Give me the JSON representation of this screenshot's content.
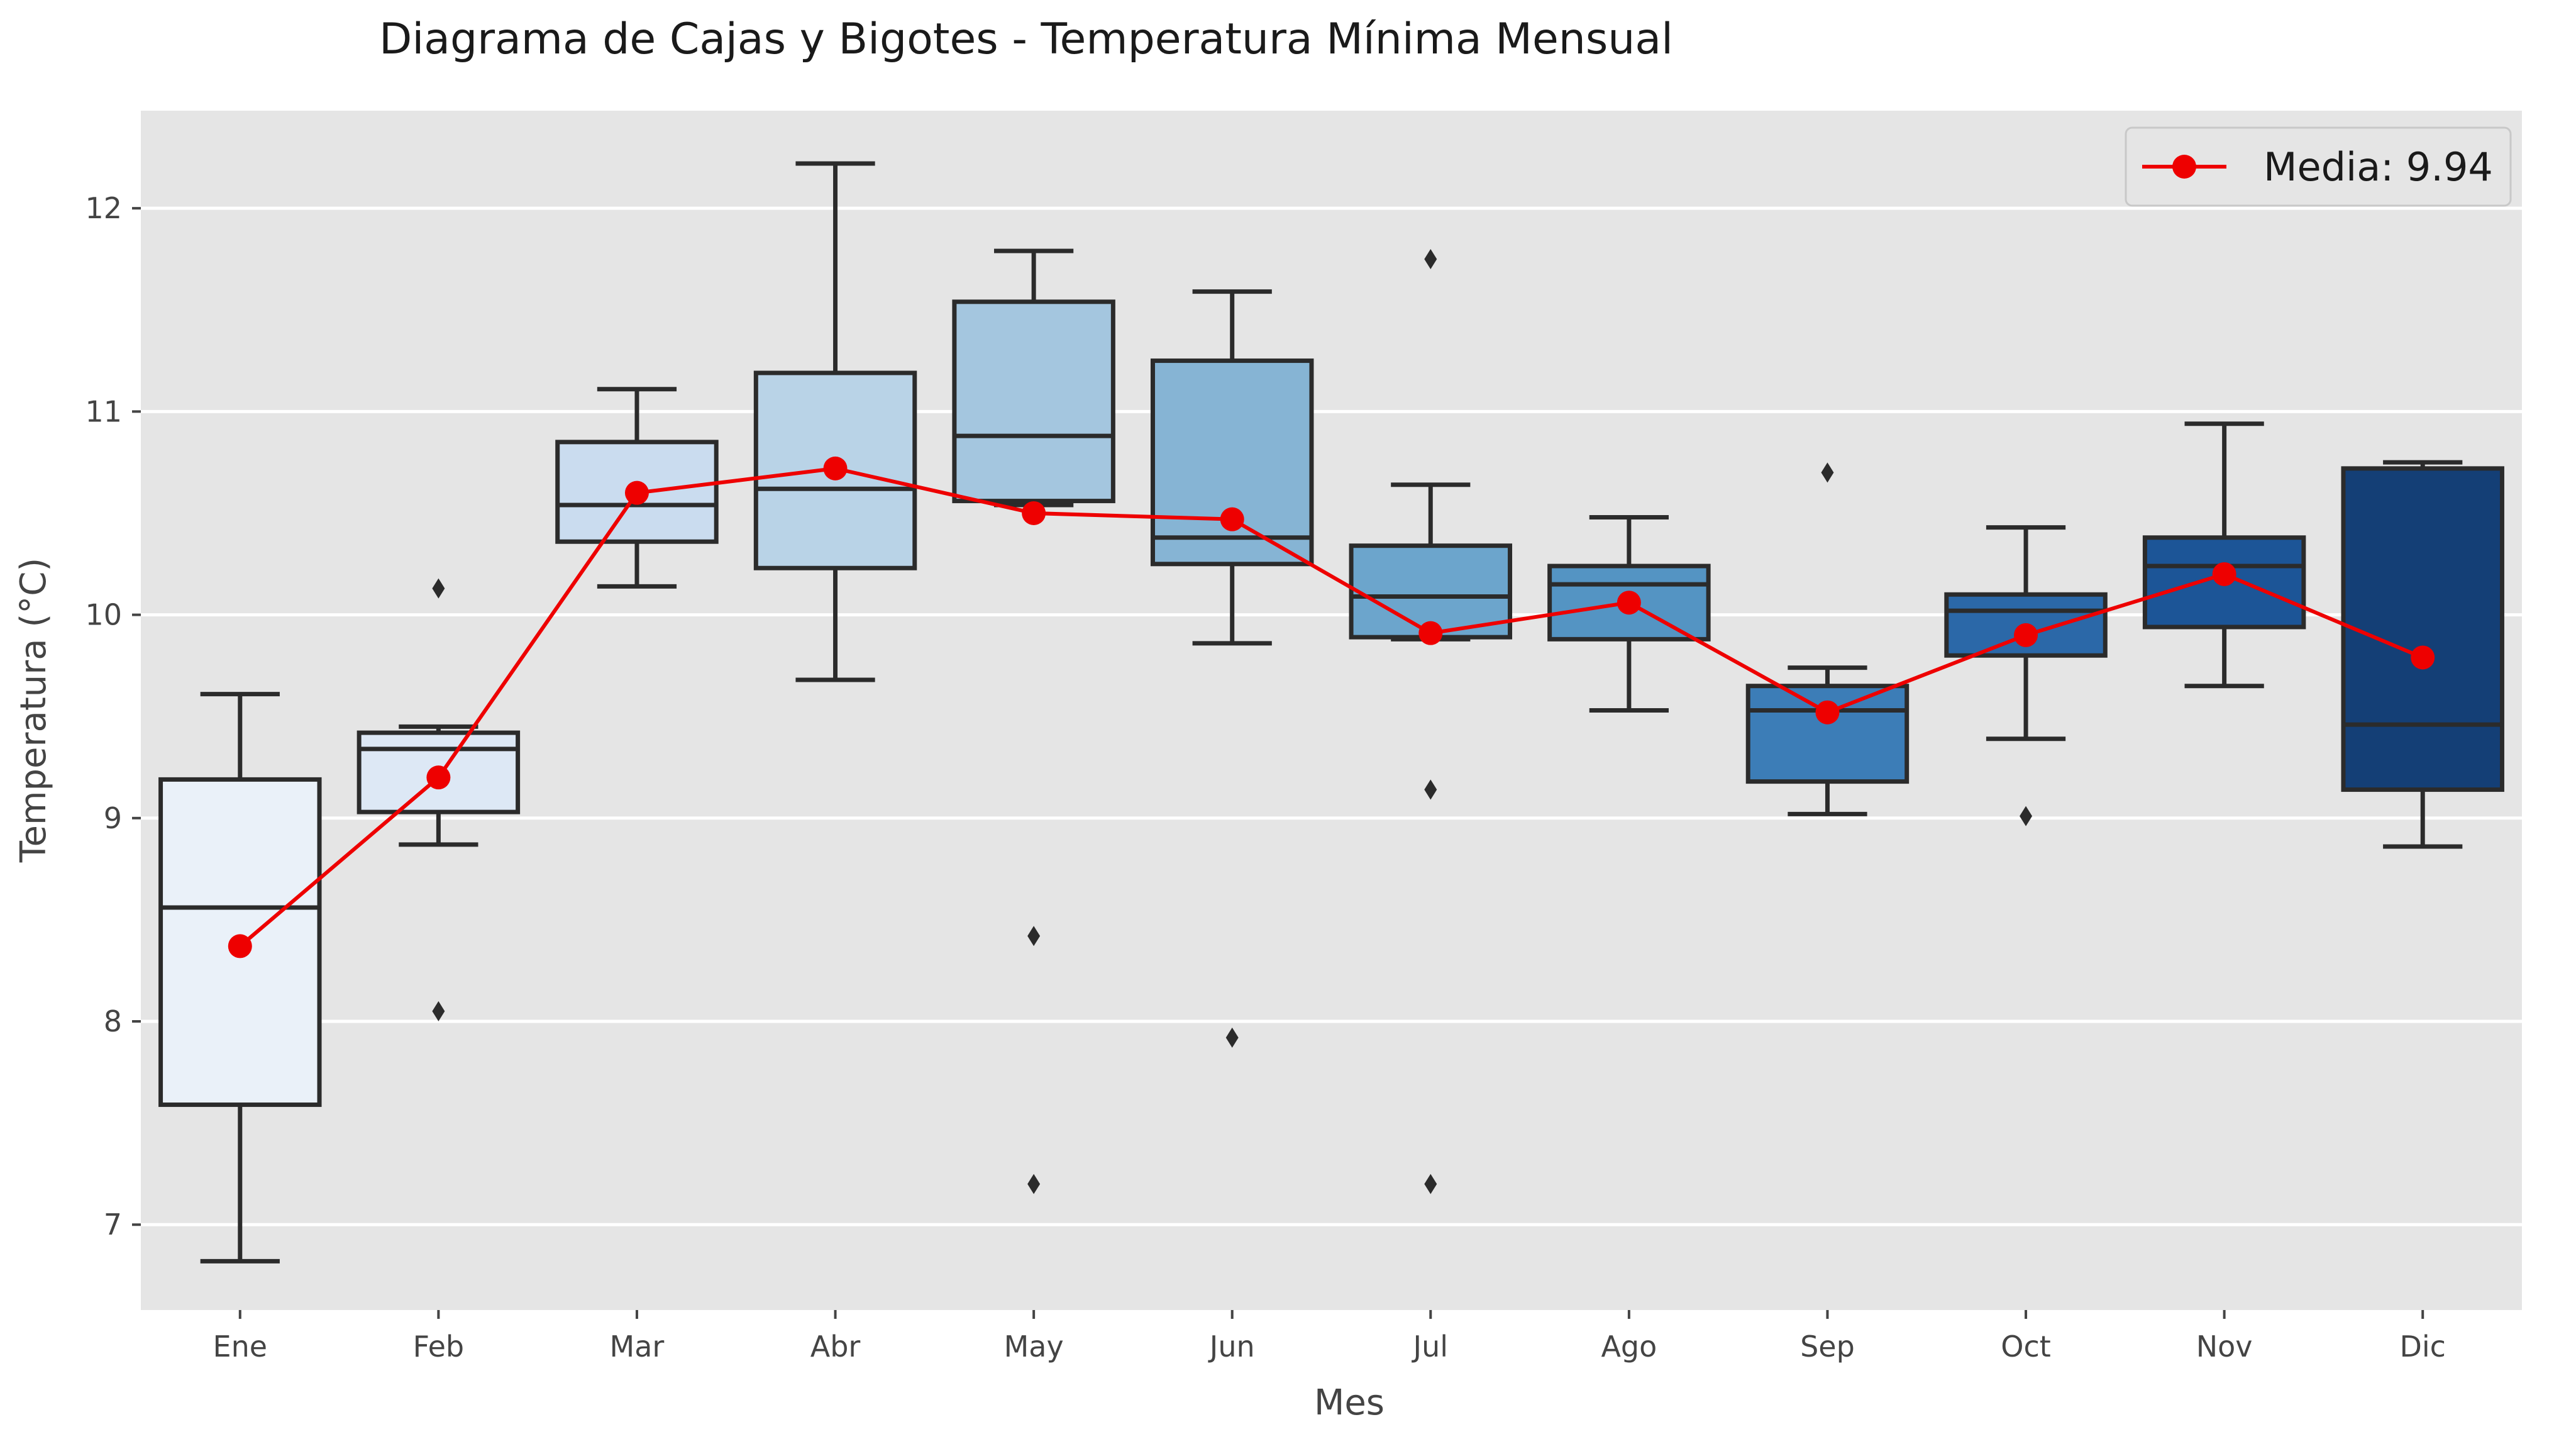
{
  "chart_data": {
    "type": "box",
    "title": "Diagrama de Cajas y Bigotes - Temperatura Mínima Mensual",
    "xlabel": "Mes",
    "ylabel": "Temperatura (°C)",
    "categories": [
      "Ene",
      "Feb",
      "Mar",
      "Abr",
      "May",
      "Jun",
      "Jul",
      "Ago",
      "Sep",
      "Oct",
      "Nov",
      "Dic"
    ],
    "ylim": [
      6.58,
      12.48
    ],
    "yticks": [
      7,
      8,
      9,
      10,
      11,
      12
    ],
    "ytick_labels": [
      "7",
      "8",
      "9",
      "10",
      "11",
      "12"
    ],
    "grid": true,
    "legend_position": "top-right",
    "boxes": [
      {
        "whisker_low": 6.82,
        "q1": 7.59,
        "median": 8.56,
        "q3": 9.19,
        "whisker_high": 9.61,
        "outliers": []
      },
      {
        "whisker_low": 8.87,
        "q1": 9.03,
        "median": 9.34,
        "q3": 9.42,
        "whisker_high": 9.45,
        "outliers": [
          10.13,
          8.05
        ]
      },
      {
        "whisker_low": 10.14,
        "q1": 10.36,
        "median": 10.54,
        "q3": 10.85,
        "whisker_high": 11.11,
        "outliers": []
      },
      {
        "whisker_low": 9.68,
        "q1": 10.23,
        "median": 10.62,
        "q3": 11.19,
        "whisker_high": 12.22,
        "outliers": []
      },
      {
        "whisker_low": 10.54,
        "q1": 10.56,
        "median": 10.88,
        "q3": 11.54,
        "whisker_high": 11.79,
        "outliers": [
          8.42,
          7.2
        ]
      },
      {
        "whisker_low": 9.86,
        "q1": 10.25,
        "median": 10.38,
        "q3": 11.25,
        "whisker_high": 11.59,
        "outliers": [
          7.92
        ]
      },
      {
        "whisker_low": 9.88,
        "q1": 9.89,
        "median": 10.09,
        "q3": 10.34,
        "whisker_high": 10.64,
        "outliers": [
          11.75,
          9.14,
          7.2
        ]
      },
      {
        "whisker_low": 9.53,
        "q1": 9.88,
        "median": 10.15,
        "q3": 10.24,
        "whisker_high": 10.48,
        "outliers": []
      },
      {
        "whisker_low": 9.02,
        "q1": 9.18,
        "median": 9.53,
        "q3": 9.65,
        "whisker_high": 9.74,
        "outliers": [
          10.7
        ]
      },
      {
        "whisker_low": 9.39,
        "q1": 9.8,
        "median": 10.02,
        "q3": 10.1,
        "whisker_high": 10.43,
        "outliers": [
          9.01
        ]
      },
      {
        "whisker_low": 9.65,
        "q1": 9.94,
        "median": 10.24,
        "q3": 10.38,
        "whisker_high": 10.94,
        "outliers": []
      },
      {
        "whisker_low": 8.86,
        "q1": 9.14,
        "median": 9.46,
        "q3": 10.72,
        "whisker_high": 10.75,
        "outliers": []
      }
    ],
    "box_colors": [
      "#eaf1f9",
      "#dde8f5",
      "#cadcef",
      "#b9d3e7",
      "#a4c6df",
      "#86b4d4",
      "#6ca5cc",
      "#5494c3",
      "#3c7db7",
      "#2b68a8",
      "#1c5597",
      "#143f76"
    ],
    "mean_series": {
      "name": "Media: 9.94",
      "values": [
        8.37,
        9.2,
        10.6,
        10.72,
        10.5,
        10.47,
        9.91,
        10.06,
        9.52,
        9.9,
        10.2,
        9.79
      ],
      "color": "#ee0000"
    }
  }
}
